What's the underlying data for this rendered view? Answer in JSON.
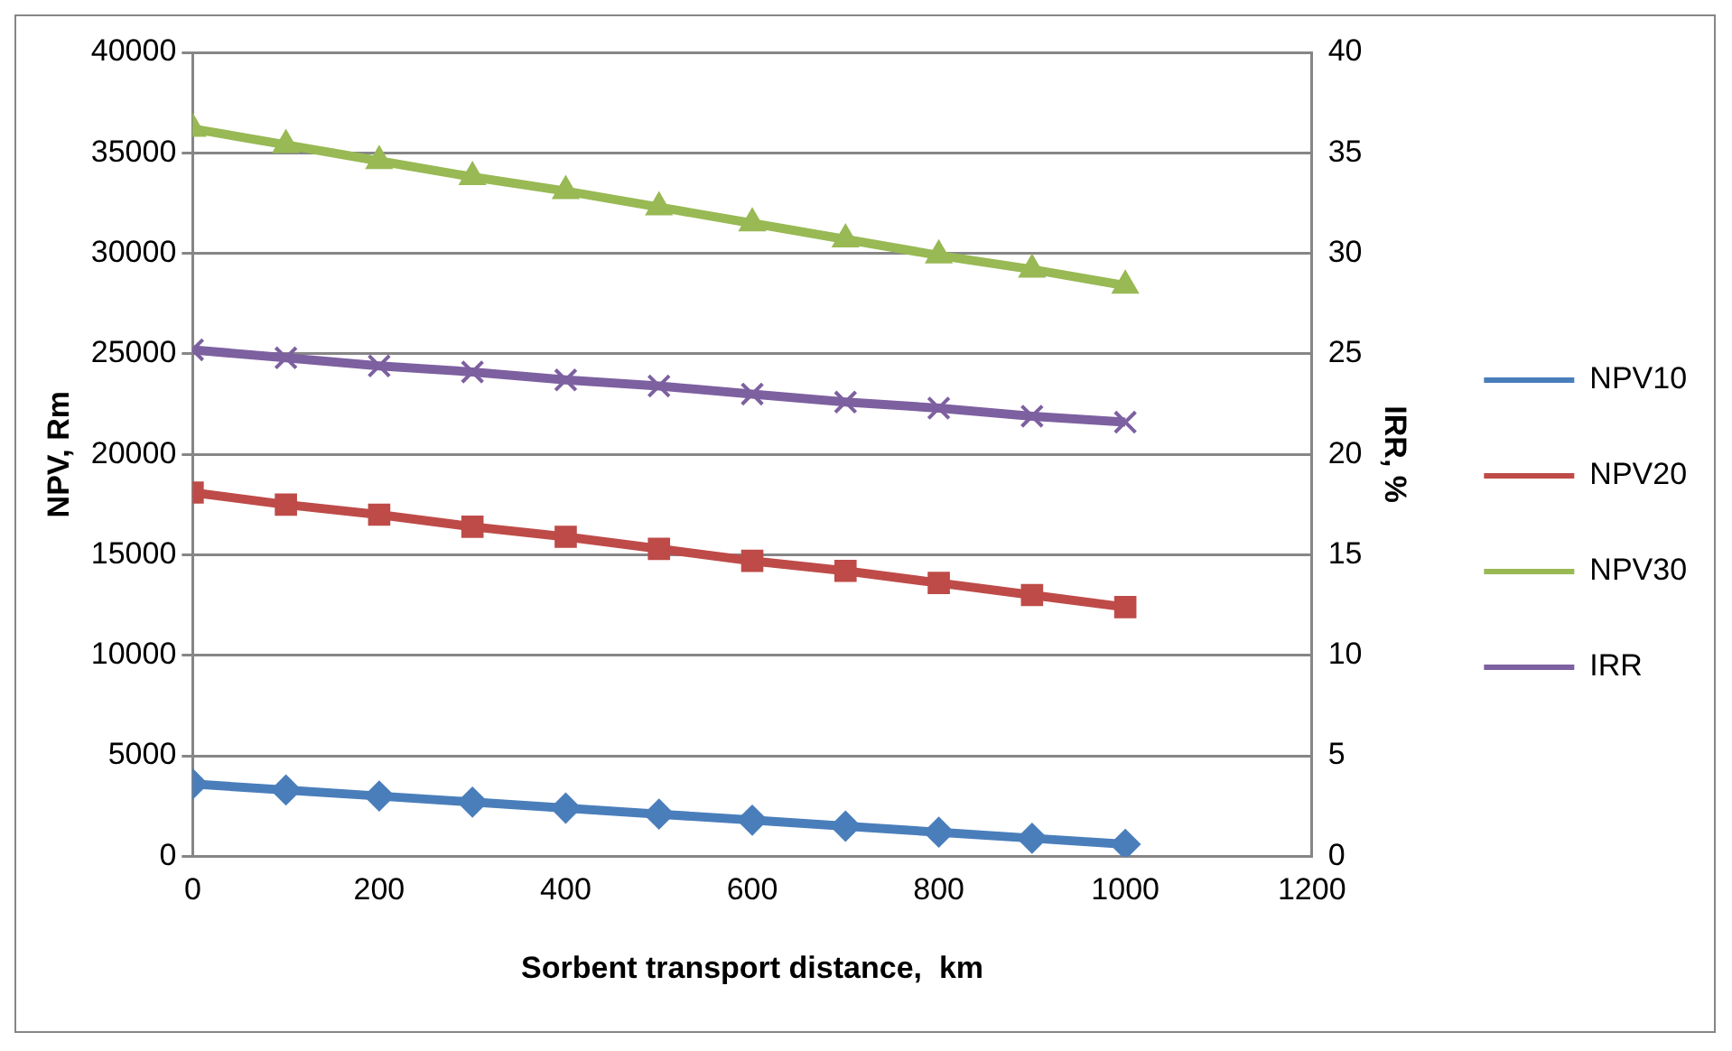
{
  "chart_data": {
    "type": "line",
    "xlabel": "Sorbent transport distance,  km",
    "ylabel": "NPV, Rm",
    "y2label": "IRR, %",
    "x": [
      0,
      100,
      200,
      300,
      400,
      500,
      600,
      700,
      800,
      900,
      1000
    ],
    "series": [
      {
        "name": "NPV10",
        "color": "#4a7ebb",
        "marker": "diamond",
        "values": [
          3600,
          3300,
          3000,
          2700,
          2400,
          2100,
          1800,
          1500,
          1200,
          900,
          600
        ]
      },
      {
        "name": "NPV20",
        "color": "#be4b48",
        "marker": "square",
        "values": [
          18100,
          17500,
          17000,
          16400,
          15900,
          15300,
          14700,
          14200,
          13600,
          13000,
          12400
        ]
      },
      {
        "name": "NPV30",
        "color": "#98b954",
        "marker": "triangle",
        "values": [
          36200,
          35400,
          34600,
          33800,
          33100,
          32300,
          31500,
          30700,
          29900,
          29200,
          28400
        ]
      },
      {
        "name": "IRR",
        "color": "#7d60a0",
        "marker": "cross",
        "axis": "y2",
        "values": [
          25.2,
          24.8,
          24.4,
          24.1,
          23.7,
          23.4,
          23.0,
          22.6,
          22.3,
          21.9,
          21.6
        ]
      }
    ],
    "xlim": [
      0,
      1200
    ],
    "xticks": [
      0,
      200,
      400,
      600,
      800,
      1000,
      1200
    ],
    "ylim": [
      0,
      40000
    ],
    "yticks": [
      0,
      5000,
      10000,
      15000,
      20000,
      25000,
      30000,
      35000,
      40000
    ],
    "y2lim": [
      0,
      40
    ],
    "y2ticks": [
      0,
      5,
      10,
      15,
      20,
      25,
      30,
      35,
      40
    ],
    "grid": "y",
    "legend": "right",
    "line_style": "solid"
  }
}
